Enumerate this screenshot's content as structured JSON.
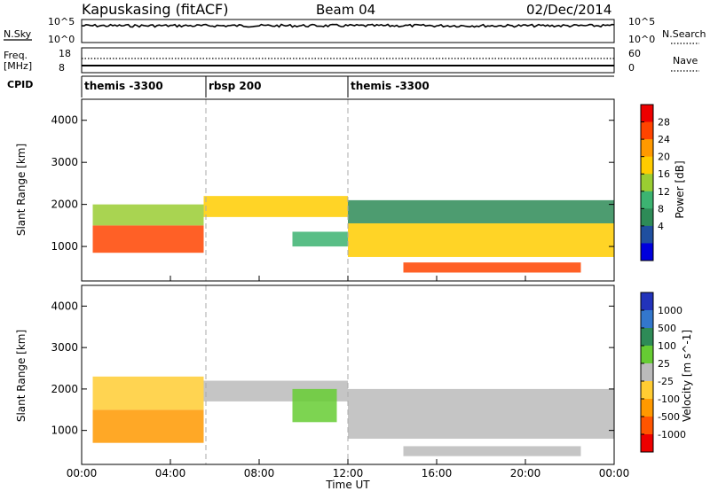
{
  "header": {
    "station": "Kapuskasing (fitACF)",
    "beam": "Beam 04",
    "date": "02/Dec/2014"
  },
  "panels": {
    "nsky": {
      "label": "N.Sky",
      "left_ticks": [
        "10^5",
        "10^0"
      ],
      "right_ticks": [
        "10^5",
        "10^0"
      ],
      "right_label": "N.Search"
    },
    "freq": {
      "label_line1": "Freq.",
      "label_line2": "[MHz]",
      "left_ticks": [
        "18",
        "8"
      ],
      "right_ticks": [
        "60",
        "0"
      ],
      "right_label": "Nave"
    },
    "cpid": {
      "label": "CPID",
      "segments": [
        {
          "name": "themis -3300",
          "start_hour": 0
        },
        {
          "name": "rbsp 200",
          "start_hour": 5.6
        },
        {
          "name": "themis -3300",
          "start_hour": 12.0
        }
      ]
    },
    "power": {
      "ylabel": "Slant Range [km]",
      "cbar_label": "Power [dB]",
      "cbar_ticks": [
        "28",
        "24",
        "20",
        "16",
        "12",
        "8",
        "4"
      ],
      "cbar_colors": [
        "#ee0000",
        "#ff4400",
        "#ff9900",
        "#ffcc00",
        "#9acd32",
        "#3cb371",
        "#2e8b57",
        "#1f4fa0",
        "#0000dd"
      ]
    },
    "velocity": {
      "ylabel": "Slant Range [km]",
      "cbar_label": "Velocity [m s^-1]",
      "cbar_ticks": [
        "1000",
        "500",
        "100",
        "25",
        "-25",
        "-100",
        "-500",
        "-1000"
      ],
      "cbar_colors": [
        "#2233bb",
        "#3377cc",
        "#2e8b57",
        "#66cc33",
        "#bbbbbb",
        "#ffcc33",
        "#ff9900",
        "#ff5500",
        "#ee0000"
      ]
    }
  },
  "xaxis": {
    "label": "Time UT",
    "ticks": [
      "00:00",
      "04:00",
      "08:00",
      "12:00",
      "16:00",
      "20:00",
      "00:00"
    ]
  },
  "chart_data": {
    "type": "heatmap",
    "title": "Kapuskasing (fitACF)",
    "x": {
      "label": "Time UT",
      "range_hours": [
        0,
        24
      ],
      "ticks": [
        "00:00",
        "04:00",
        "08:00",
        "12:00",
        "16:00",
        "20:00",
        "00:00"
      ]
    },
    "y": {
      "label": "Slant Range [km]",
      "range": [
        180,
        4500
      ],
      "ticks": [
        1000,
        2000,
        3000,
        4000
      ]
    },
    "series": [
      {
        "name": "Power [dB]",
        "colorbar_range": [
          0,
          30
        ],
        "regions": [
          {
            "t0": 0.5,
            "t1": 5.5,
            "r0": 850,
            "r1": 1500,
            "value": 26
          },
          {
            "t0": 0.5,
            "t1": 5.5,
            "r0": 1500,
            "r1": 2000,
            "value": 14
          },
          {
            "t0": 5.5,
            "t1": 12.0,
            "r0": 1700,
            "r1": 2200,
            "value": 18
          },
          {
            "t0": 9.5,
            "t1": 12.0,
            "r0": 1000,
            "r1": 1350,
            "value": 12
          },
          {
            "t0": 12.0,
            "t1": 24.0,
            "r0": 750,
            "r1": 1550,
            "value": 20
          },
          {
            "t0": 14.5,
            "t1": 22.5,
            "r0": 380,
            "r1": 620,
            "value": 27
          },
          {
            "t0": 12.0,
            "t1": 24.0,
            "r0": 1550,
            "r1": 2100,
            "value": 6
          }
        ]
      },
      {
        "name": "Velocity [m s^-1]",
        "colorbar_range": [
          -1000,
          1000
        ],
        "regions": [
          {
            "t0": 0.5,
            "t1": 5.5,
            "r0": 700,
            "r1": 1500,
            "value": -450
          },
          {
            "t0": 0.5,
            "t1": 5.5,
            "r0": 1500,
            "r1": 2300,
            "value": -150
          },
          {
            "t0": 5.5,
            "t1": 12.0,
            "r0": 1700,
            "r1": 2200,
            "value": 0
          },
          {
            "t0": 9.5,
            "t1": 11.5,
            "r0": 1200,
            "r1": 2000,
            "value": 150
          },
          {
            "t0": 12.0,
            "t1": 24.0,
            "r0": 800,
            "r1": 2000,
            "value": 0
          },
          {
            "t0": 14.5,
            "t1": 22.5,
            "r0": 380,
            "r1": 620,
            "value": 0
          }
        ]
      }
    ],
    "frequency_mhz": {
      "range": [
        8,
        18
      ],
      "value": 10.5
    },
    "nave": {
      "range": [
        0,
        60
      ],
      "value": 30
    }
  }
}
